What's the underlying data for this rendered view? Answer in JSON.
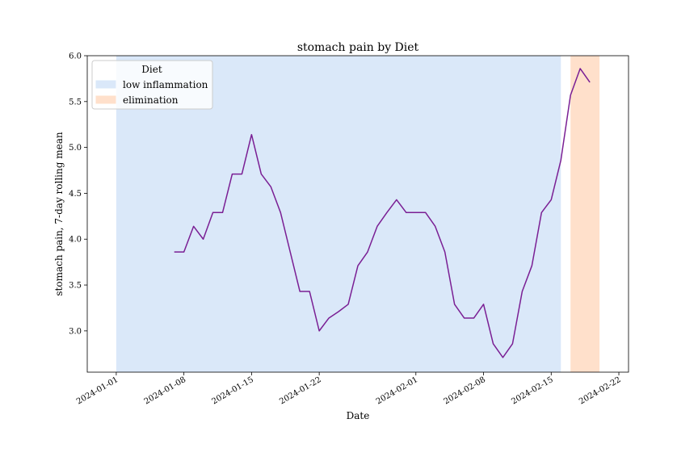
{
  "chart_data": {
    "type": "line",
    "title": "stomach pain by Diet",
    "xlabel": "Date",
    "ylabel": "stomach pain, 7-day rolling mean",
    "x_type": "date",
    "xlim": [
      "2023-12-29",
      "2024-02-23"
    ],
    "ylim": [
      2.55,
      6.0
    ],
    "x_ticks": [
      "2024-01-01",
      "2024-01-08",
      "2024-01-15",
      "2024-01-22",
      "2024-02-01",
      "2024-02-08",
      "2024-02-15",
      "2024-02-22"
    ],
    "y_ticks": [
      "3.0",
      "3.5",
      "4.0",
      "4.5",
      "5.0",
      "5.5",
      "6.0"
    ],
    "grid": false,
    "legend": {
      "title": "Diet",
      "placement": "top-left",
      "entries": [
        "low inflammation",
        "elimination"
      ]
    },
    "spans": [
      {
        "label": "low inflammation",
        "start": "2024-01-01",
        "end": "2024-02-16",
        "color": "#dae8f9"
      },
      {
        "label": "elimination",
        "start": "2024-02-17",
        "end": "2024-02-20",
        "color": "#ffe0cb"
      }
    ],
    "series": [
      {
        "color": "#7a1f94",
        "x": [
          "2024-01-07",
          "2024-01-08",
          "2024-01-09",
          "2024-01-10",
          "2024-01-11",
          "2024-01-12",
          "2024-01-13",
          "2024-01-14",
          "2024-01-15",
          "2024-01-16",
          "2024-01-17",
          "2024-01-18",
          "2024-01-19",
          "2024-01-20",
          "2024-01-21",
          "2024-01-22",
          "2024-01-23",
          "2024-01-24",
          "2024-01-25",
          "2024-01-26",
          "2024-01-27",
          "2024-01-28",
          "2024-01-29",
          "2024-01-30",
          "2024-01-31",
          "2024-02-01",
          "2024-02-02",
          "2024-02-03",
          "2024-02-04",
          "2024-02-05",
          "2024-02-06",
          "2024-02-07",
          "2024-02-08",
          "2024-02-09",
          "2024-02-10",
          "2024-02-11",
          "2024-02-12",
          "2024-02-13",
          "2024-02-14",
          "2024-02-15",
          "2024-02-16",
          "2024-02-17",
          "2024-02-18",
          "2024-02-19"
        ],
        "values": [
          3.86,
          3.86,
          4.14,
          4.0,
          4.29,
          4.29,
          4.71,
          4.71,
          5.14,
          4.71,
          4.57,
          4.29,
          3.86,
          3.43,
          3.43,
          3.0,
          3.14,
          3.21,
          3.29,
          3.71,
          3.86,
          4.14,
          4.29,
          4.43,
          4.29,
          4.29,
          4.29,
          4.14,
          3.86,
          3.29,
          3.14,
          3.14,
          3.29,
          2.86,
          2.71,
          2.86,
          3.43,
          3.71,
          4.29,
          4.43,
          4.86,
          5.57,
          5.86,
          5.71
        ]
      }
    ]
  }
}
